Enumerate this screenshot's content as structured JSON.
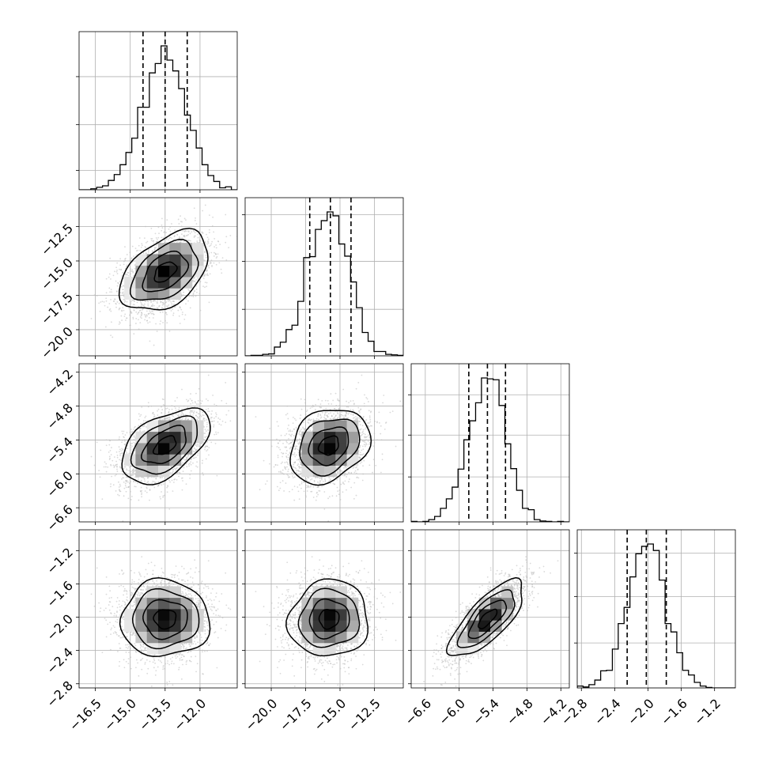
{
  "chart_data": {
    "type": "corner",
    "variables": [
      {
        "range": [
          -17.2,
          -10.4
        ],
        "ticks": [
          -16.5,
          -15.0,
          -13.5,
          -12.0
        ],
        "tick_labels": [
          "−16.5",
          "−15.0",
          "−13.5",
          "−12.0"
        ],
        "quantiles": [
          -14.45,
          -13.5,
          -12.55
        ],
        "mean": -13.5,
        "sd": 0.95,
        "hist_tick_fracs": [
          0.125,
          0.42,
          0.73
        ]
      },
      {
        "range": [
          -21.9,
          -10.4
        ],
        "ticks": [
          -20.0,
          -17.5,
          -15.0,
          -12.5
        ],
        "tick_labels": [
          "−20.0",
          "−17.5",
          "−15.0",
          "−12.5"
        ],
        "quantiles": [
          -17.2,
          -15.7,
          -14.2
        ],
        "mean": -15.8,
        "sd": 1.45,
        "hist_tick_fracs": [
          0.0,
          0.3,
          0.61,
          0.91
        ]
      },
      {
        "range": [
          -6.85,
          -4.05
        ],
        "ticks": [
          -6.6,
          -6.0,
          -5.4,
          -4.8,
          -4.2
        ],
        "tick_labels": [
          "−6.6",
          "−6.0",
          "−5.4",
          "−4.8",
          "−4.2"
        ],
        "quantiles": [
          -5.83,
          -5.5,
          -5.18
        ],
        "mean": -5.5,
        "sd": 0.33,
        "hist_tick_fracs": [
          0.0,
          0.29,
          0.56,
          0.82
        ]
      },
      {
        "range": [
          -2.85,
          -0.95
        ],
        "ticks": [
          -2.8,
          -2.4,
          -2.0,
          -1.6,
          -1.2
        ],
        "tick_labels": [
          "−2.8",
          "−2.4",
          "−2.0",
          "−1.6",
          "−1.2"
        ],
        "quantiles": [
          -2.25,
          -2.02,
          -1.78
        ],
        "mean": -2.02,
        "sd": 0.23,
        "hist_tick_fracs": [
          0.0,
          0.29,
          0.59,
          0.87
        ]
      }
    ],
    "correlations": [
      [
        1.0,
        0.45,
        0.5,
        0.0
      ],
      [
        0.45,
        1.0,
        0.25,
        0.05
      ],
      [
        0.5,
        0.25,
        1.0,
        0.75
      ],
      [
        0.0,
        0.05,
        0.75,
        1.0
      ]
    ],
    "hist_bins": 20,
    "contour_levels_sigma": [
      0.5,
      1.0,
      1.5,
      2.0
    ],
    "grid": true,
    "colors": {
      "line": "#000000",
      "grid": "#b0b0b0",
      "points": "#bbbbbb"
    }
  }
}
